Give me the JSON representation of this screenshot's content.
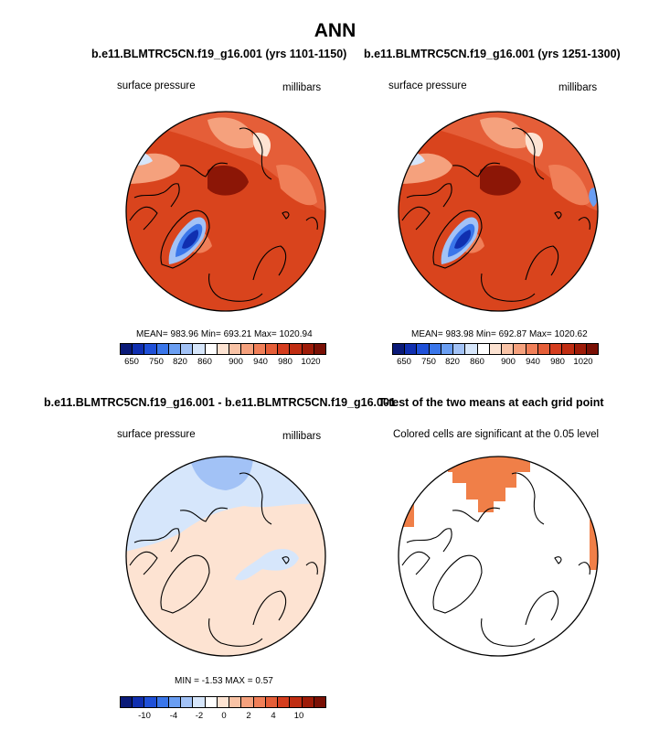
{
  "title": "ANN",
  "panels": {
    "p1": {
      "title": "b.e11.BLMTRC5CN.f19_g16.001 (yrs 1101-1150)",
      "var": "surface pressure",
      "units": "millibars",
      "stats": "MEAN= 983.96  Min= 693.21  Max= 1020.94"
    },
    "p2": {
      "title": "b.e11.BLMTRC5CN.f19_g16.001 (yrs 1251-1300)",
      "var": "surface pressure",
      "units": "millibars",
      "stats": "MEAN= 983.98  Min= 692.87  Max= 1020.62"
    },
    "p3": {
      "title": "b.e11.BLMTRC5CN.f19_g16.001 - b.e11.BLMTRC5CN.f19_g16.001",
      "var": "surface pressure",
      "units": "millibars",
      "stats": "MIN =  -1.53 MAX =   0.57"
    },
    "p4": {
      "title": "T-test of the two means at each grid point",
      "subtitle": "Colored cells are significant at the 0.05 level"
    }
  },
  "colorbars": {
    "abs": {
      "labels": [
        "650",
        "750",
        "820",
        "860",
        "900",
        "940",
        "980",
        "1020"
      ],
      "colors": [
        "#0a1a78",
        "#102fb0",
        "#1f50d8",
        "#3a76ea",
        "#6a9ef2",
        "#a2c2f6",
        "#d6e6fb",
        "#ffffff",
        "#fde3d2",
        "#f9c3a6",
        "#f5a17d",
        "#f07f58",
        "#e55e38",
        "#d53d1e",
        "#c02d12",
        "#9e1b08",
        "#7a1005"
      ]
    },
    "diff": {
      "labels": [
        "-10",
        "-4",
        "-2",
        "0",
        "2",
        "4",
        "10"
      ],
      "colors": [
        "#0a1a78",
        "#102fb0",
        "#1f50d8",
        "#3a76ea",
        "#6a9ef2",
        "#a2c2f6",
        "#d6e6fb",
        "#ffffff",
        "#fde3d2",
        "#f9c3a6",
        "#f5a17d",
        "#f07f58",
        "#e55e38",
        "#d53d1e",
        "#c02d12",
        "#9e1b08",
        "#7a1005"
      ]
    }
  },
  "colors": {
    "field_base": "#d9441d",
    "field_high": "#8c1606",
    "field_light": "#f5a17d",
    "greenland_low": "#1f50d8",
    "diff_base": "#fde3d2",
    "diff_neg": "#d6e6fb",
    "diff_neg2": "#a2c2f6",
    "significant": "#f07f48"
  }
}
